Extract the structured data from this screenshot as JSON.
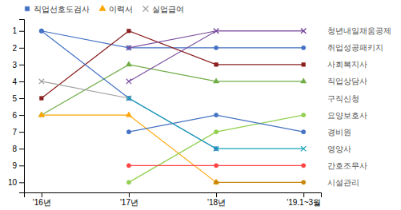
{
  "chart_data": {
    "type": "line",
    "categories": [
      "'16년",
      "'17년",
      "'18년",
      "'19.1~3월"
    ],
    "series": [
      {
        "color": "#4472C4",
        "marker": "circle",
        "values": [
          1,
          2,
          2,
          2
        ]
      },
      {
        "color": "#8B2020",
        "marker": "square",
        "values": [
          5,
          1,
          3,
          3
        ]
      },
      {
        "color": "#70AD47",
        "marker": "triangle",
        "values": [
          6,
          3,
          4,
          4
        ]
      },
      {
        "color": "#7B4EA0",
        "marker": "x",
        "values": [
          null,
          2,
          1,
          1
        ]
      },
      {
        "color": "#7B4EA0",
        "marker": "x",
        "values": [
          null,
          4,
          1,
          1
        ]
      },
      {
        "color": "#4472C4",
        "marker": "circle",
        "values": [
          1,
          5,
          8,
          null
        ]
      },
      {
        "color": "#FFA500",
        "marker": "triangle",
        "values": [
          6,
          6,
          10,
          null
        ]
      },
      {
        "color": "#A0A0A0",
        "marker": "x",
        "values": [
          4,
          5,
          null,
          null
        ]
      },
      {
        "color": "#92D050",
        "marker": "circle",
        "values": [
          null,
          10,
          7,
          6
        ]
      },
      {
        "color": "#4472C4",
        "marker": "circle",
        "values": [
          null,
          7,
          6,
          7
        ]
      },
      {
        "color": "#17A2B8",
        "marker": "x",
        "values": [
          null,
          5,
          8,
          8
        ]
      },
      {
        "color": "#FF4444",
        "marker": "circle",
        "values": [
          null,
          9,
          9,
          9
        ]
      },
      {
        "color": "#C8860A",
        "marker": "circle",
        "values": [
          null,
          null,
          10,
          10
        ]
      }
    ],
    "legend_items": [
      {
        "name": "직업선호도검사",
        "color": "#4472C4",
        "marker": "square"
      },
      {
        "name": "이력서",
        "color": "#FFA500",
        "marker": "triangle"
      },
      {
        "name": "실업급여",
        "color": "#A0A0A0",
        "marker": "x"
      }
    ],
    "annotations": [
      {
        "text": "청년내일채움공제",
        "y": 1,
        "color": "#555555"
      },
      {
        "text": "취업성공패키지",
        "y": 2,
        "color": "#555555"
      },
      {
        "text": "사회복지사",
        "y": 3,
        "color": "#555555"
      },
      {
        "text": "직업상담사",
        "y": 4,
        "color": "#555555"
      },
      {
        "text": "구직신청",
        "y": 5,
        "color": "#555555"
      },
      {
        "text": "요양보호사",
        "y": 6,
        "color": "#555555"
      },
      {
        "text": "경비원",
        "y": 7,
        "color": "#555555"
      },
      {
        "text": "영양사",
        "y": 8,
        "color": "#555555"
      },
      {
        "text": "간호조무사",
        "y": 9,
        "color": "#555555"
      },
      {
        "text": "시설관리",
        "y": 10,
        "color": "#555555"
      }
    ],
    "ylim": [
      10.6,
      0.3
    ],
    "yticks": [
      1,
      2,
      3,
      4,
      5,
      6,
      7,
      8,
      9,
      10
    ],
    "grid": false
  }
}
